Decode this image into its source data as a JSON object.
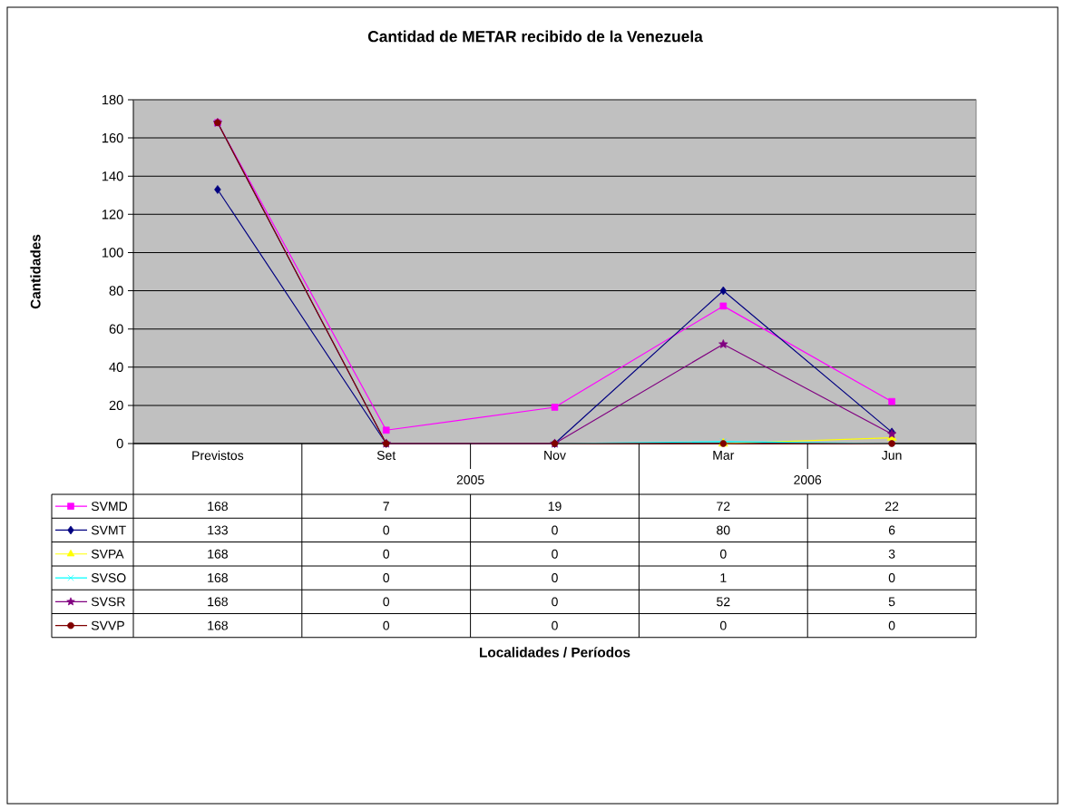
{
  "chart_data": {
    "type": "line",
    "title": "Cantidad de METAR recibido de la Venezuela",
    "ylabel": "Cantidades",
    "categories": [
      "Previstos",
      "Set",
      "Nov",
      "Mar",
      "Jun"
    ],
    "annotations": [
      "2005",
      "2006",
      "Localidades / Períodos"
    ],
    "series": [
      {
        "name": "SVMD",
        "color": "#ff00ff",
        "marker": "square",
        "values": [
          168,
          7,
          19,
          72,
          22
        ]
      },
      {
        "name": "SVMT",
        "color": "#000080",
        "marker": "diamond",
        "values": [
          133,
          0,
          0,
          80,
          6
        ]
      },
      {
        "name": "SVPA",
        "color": "#ffff00",
        "marker": "triangle",
        "values": [
          null,
          null,
          null,
          0,
          3
        ],
        "value_labels": [
          "168",
          "0",
          "0",
          "0",
          "3"
        ]
      },
      {
        "name": "SVSO",
        "color": "#00ffff",
        "marker": "cross",
        "values": [
          168,
          0,
          0,
          1,
          0
        ]
      },
      {
        "name": "SVSR",
        "color": "#800080",
        "marker": "star",
        "values": [
          168,
          0,
          0,
          52,
          5
        ]
      },
      {
        "name": "SVVP",
        "color": "#800000",
        "marker": "circle",
        "values": [
          168,
          0,
          0,
          0,
          0
        ]
      }
    ],
    "ylim": [
      0,
      180
    ],
    "yticks": [
      0,
      20,
      40,
      60,
      80,
      100,
      120,
      140,
      160,
      180
    ],
    "grid": "y",
    "legend": "bottom",
    "data_labels": true
  }
}
